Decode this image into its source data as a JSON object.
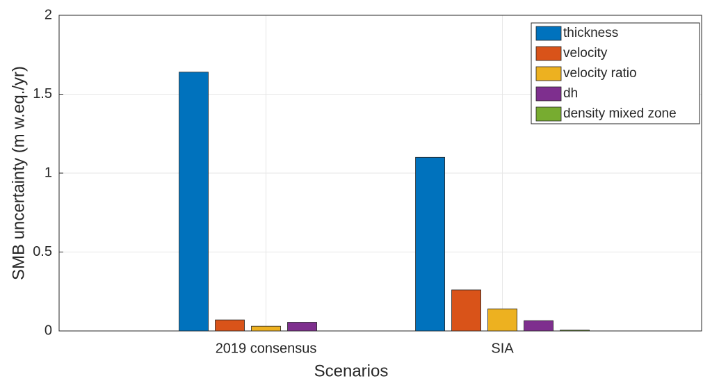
{
  "chart_data": {
    "type": "bar",
    "xlabel": "Scenarios",
    "ylabel": "SMB uncertainty (m w.eq./yr)",
    "categories": [
      "2019 consensus",
      "SIA"
    ],
    "series": [
      {
        "name": "thickness",
        "color": "#0072BD",
        "values": [
          1.64,
          1.1
        ]
      },
      {
        "name": "velocity",
        "color": "#D95319",
        "values": [
          0.07,
          0.26
        ]
      },
      {
        "name": "velocity ratio",
        "color": "#EDB120",
        "values": [
          0.03,
          0.14
        ]
      },
      {
        "name": "dh",
        "color": "#7E2F8E",
        "values": [
          0.055,
          0.065
        ]
      },
      {
        "name": "density mixed zone",
        "color": "#77AC30",
        "values": [
          0,
          0.005
        ]
      }
    ],
    "ylim": [
      0,
      2
    ],
    "yticks": [
      0,
      0.5,
      1,
      1.5,
      2
    ],
    "grid": true,
    "legend": "top-right"
  }
}
